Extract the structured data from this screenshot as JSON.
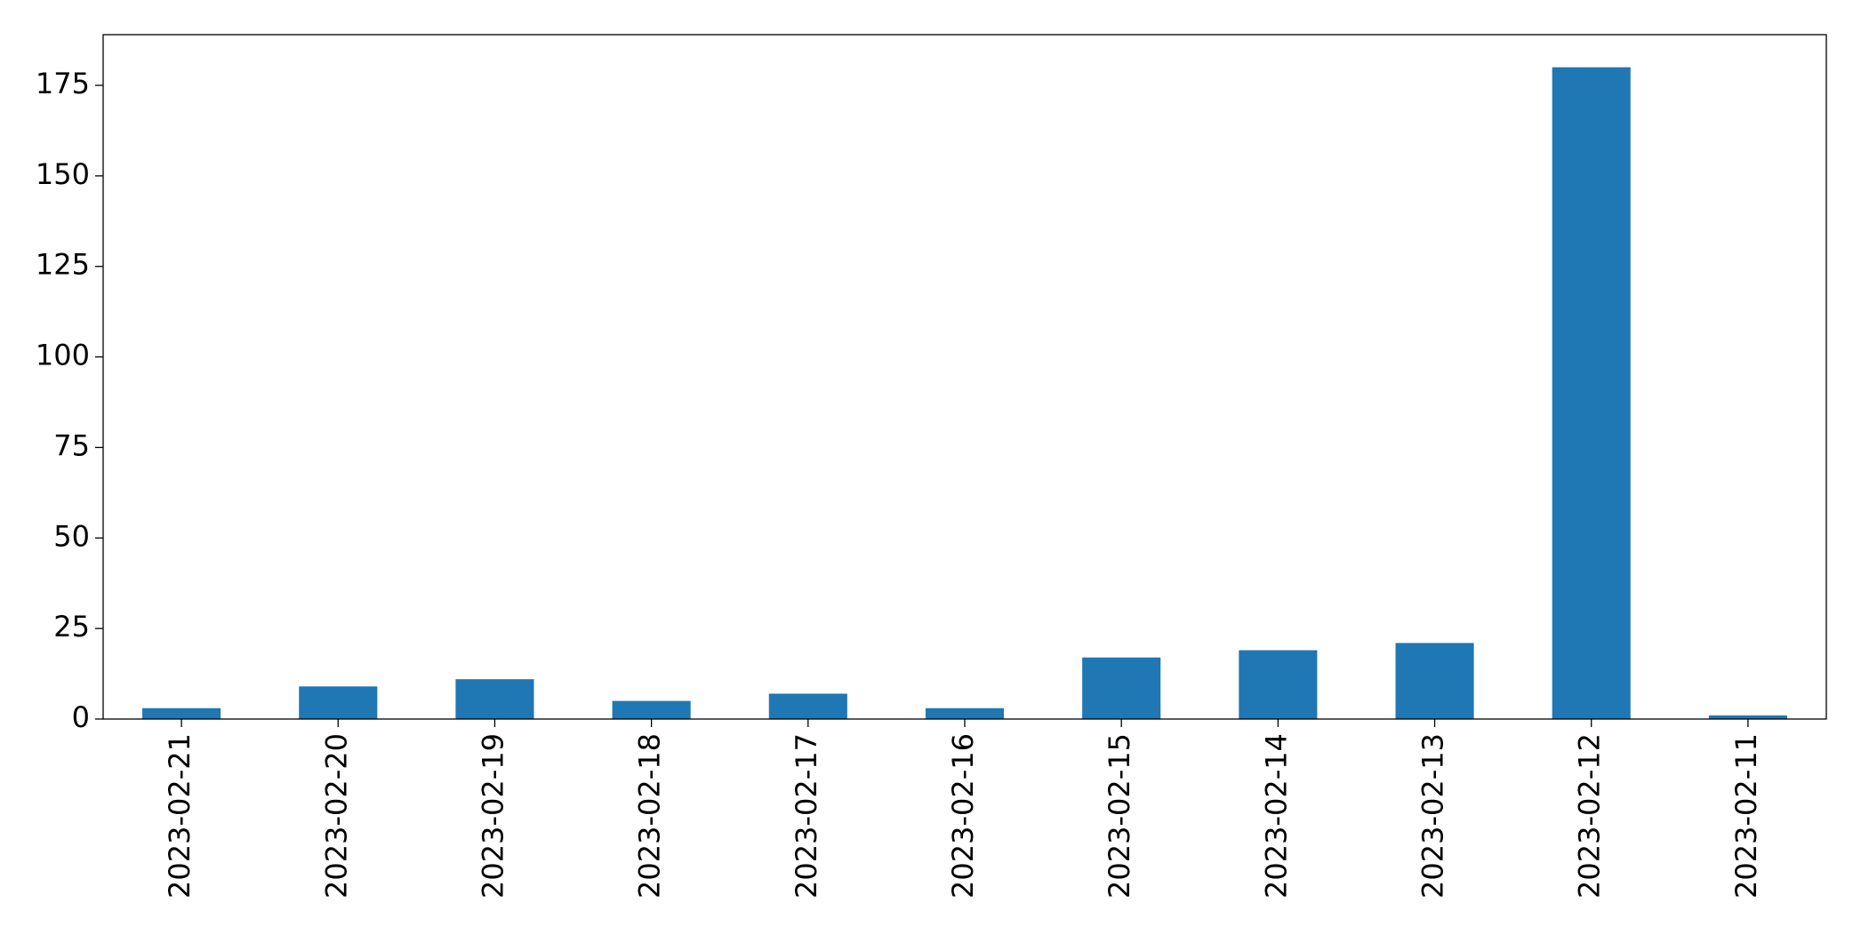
{
  "chart_data": {
    "type": "bar",
    "categories": [
      "2023-02-21",
      "2023-02-20",
      "2023-02-19",
      "2023-02-18",
      "2023-02-17",
      "2023-02-16",
      "2023-02-15",
      "2023-02-14",
      "2023-02-13",
      "2023-02-12",
      "2023-02-11"
    ],
    "values": [
      3,
      9,
      11,
      5,
      7,
      3,
      17,
      19,
      21,
      180,
      1
    ],
    "color": "#1f77b4",
    "ylim": [
      0,
      189
    ],
    "yticks": [
      0,
      25,
      50,
      75,
      100,
      125,
      150,
      175
    ],
    "grid": false
  }
}
